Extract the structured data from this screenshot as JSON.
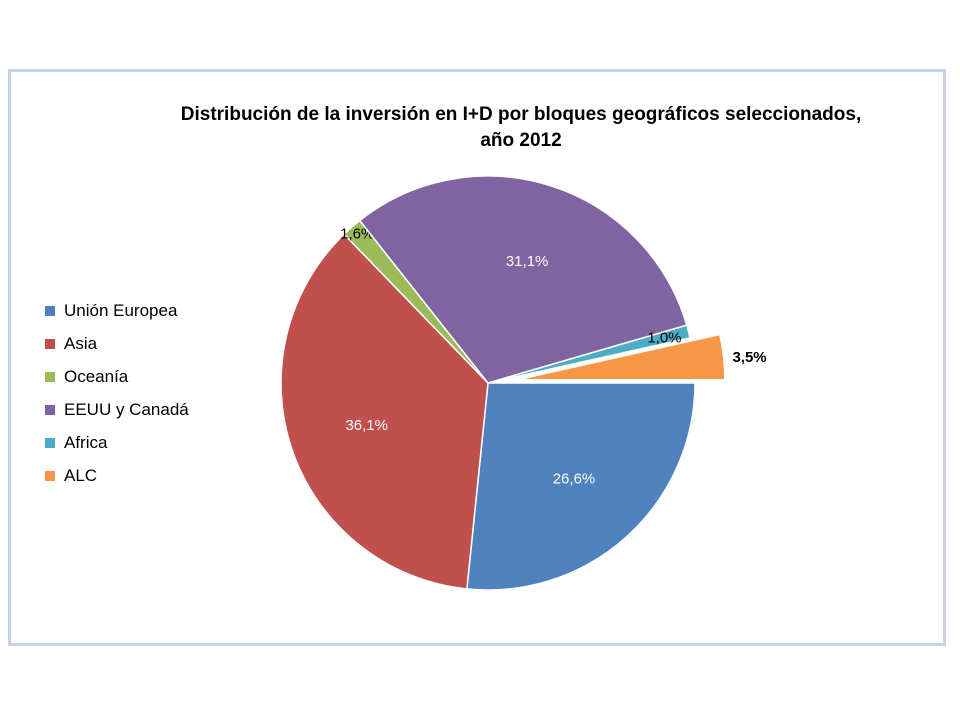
{
  "chart_data": {
    "type": "pie",
    "title": "Distribución de la inversión en I+D por bloques geográficos seleccionados, año 2012",
    "title_lines": [
      "Distribución de la inversión en I+D por bloques geográficos seleccionados,",
      "año 2012"
    ],
    "legend_position": "left",
    "slices": [
      {
        "name": "Unión Europea",
        "value": 26.6,
        "label": "26,6%",
        "color": "#4f81bd",
        "label_color": "#ffffff"
      },
      {
        "name": "Asia",
        "value": 36.1,
        "label": "36,1%",
        "color": "#c0504d",
        "label_color": "#ffffff"
      },
      {
        "name": "Oceanía",
        "value": 1.6,
        "label": "1,6%",
        "color": "#9bbb59",
        "label_color": "#000000"
      },
      {
        "name": "EEUU y Canadá",
        "value": 31.1,
        "label": "31,1%",
        "color": "#8064a2",
        "label_color": "#ffffff"
      },
      {
        "name": "Africa",
        "value": 1.0,
        "label": "1,0%",
        "color": "#4bacc6",
        "label_color": "#000000"
      },
      {
        "name": "ALC",
        "value": 3.5,
        "label": "3,5%",
        "color": "#f79646",
        "label_color": "#000000",
        "exploded": true,
        "bold_label": true
      }
    ]
  }
}
